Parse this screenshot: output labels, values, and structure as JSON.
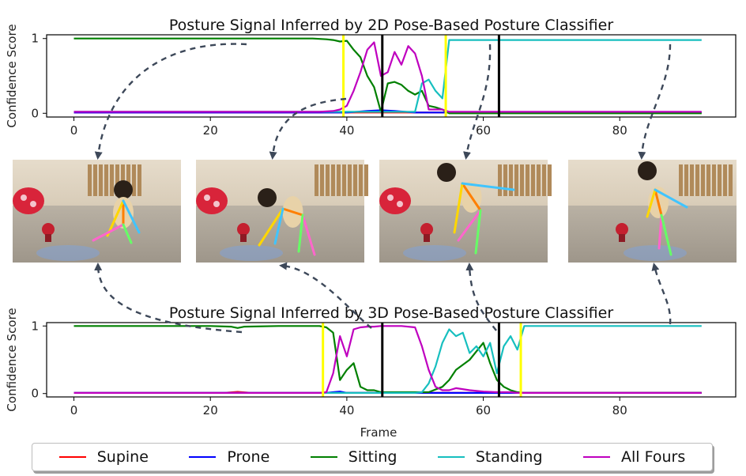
{
  "colors": {
    "Supine": "#ff0000",
    "Prone": "#0000ff",
    "Sitting": "#008000",
    "Standing": "#17bfbf",
    "All Fours": "#bf00bf",
    "boundary_yellow": "#ffff00",
    "boundary_black": "#000000",
    "arrow": "#3d4859"
  },
  "legend": [
    "Supine",
    "Prone",
    "Sitting",
    "Standing",
    "All Fours"
  ],
  "frames": [
    {
      "name": "frame-1",
      "description_icon": "child-sitting-photo"
    },
    {
      "name": "frame-2",
      "description_icon": "child-crawling-photo"
    },
    {
      "name": "frame-3",
      "description_icon": "child-rising-photo"
    },
    {
      "name": "frame-4",
      "description_icon": "child-standing-photo"
    }
  ],
  "chart_data": [
    {
      "type": "line",
      "title": "Posture Signal Inferred by 2D Pose-Based Posture Classifier",
      "xlabel": "",
      "ylabel": "Confidence Score",
      "xlim": [
        -4,
        97
      ],
      "ylim": [
        -0.05,
        1.05
      ],
      "xticks": [
        0,
        20,
        40,
        60,
        80
      ],
      "yticks": [
        0,
        1
      ],
      "vlines": [
        {
          "x": 39.5,
          "color": "yellow"
        },
        {
          "x": 45.2,
          "color": "black"
        },
        {
          "x": 54.5,
          "color": "yellow"
        },
        {
          "x": 62.3,
          "color": "black"
        }
      ],
      "series": [
        {
          "name": "Sitting",
          "x": [
            0,
            10,
            20,
            30,
            35,
            37,
            38,
            39,
            40,
            41,
            42,
            43,
            44,
            45,
            46,
            47,
            48,
            49,
            50,
            51,
            52,
            53,
            54,
            55,
            60,
            70,
            80,
            92
          ],
          "y": [
            1,
            1,
            1,
            1,
            1,
            0.99,
            0.98,
            0.96,
            0.97,
            0.85,
            0.75,
            0.5,
            0.35,
            0.02,
            0.4,
            0.42,
            0.38,
            0.3,
            0.25,
            0.3,
            0.1,
            0.08,
            0.05,
            0,
            0,
            0,
            0,
            0
          ]
        },
        {
          "name": "All Fours",
          "x": [
            0,
            20,
            36,
            38,
            39,
            40,
            41,
            42,
            43,
            44,
            45,
            46,
            47,
            48,
            49,
            50,
            51,
            52,
            53,
            54,
            55,
            60,
            92
          ],
          "y": [
            0.02,
            0.02,
            0.02,
            0.03,
            0.05,
            0.1,
            0.3,
            0.55,
            0.85,
            0.95,
            0.5,
            0.55,
            0.82,
            0.65,
            0.9,
            0.8,
            0.5,
            0.05,
            0.05,
            0.05,
            0.02,
            0.02,
            0.02
          ]
        },
        {
          "name": "Standing",
          "x": [
            0,
            40,
            45,
            50,
            51,
            52,
            53,
            54,
            55,
            56,
            60,
            70,
            80,
            92
          ],
          "y": [
            0.02,
            0.02,
            0.02,
            0.02,
            0.4,
            0.45,
            0.3,
            0.2,
            0.98,
            0.98,
            0.98,
            0.98,
            0.98,
            0.98
          ]
        },
        {
          "name": "Prone",
          "x": [
            0,
            40,
            43,
            45,
            47,
            50,
            92
          ],
          "y": [
            0.01,
            0.01,
            0.03,
            0.04,
            0.03,
            0.01,
            0.01
          ]
        },
        {
          "name": "Supine",
          "x": [
            0,
            92
          ],
          "y": [
            0.01,
            0.01
          ]
        }
      ]
    },
    {
      "type": "line",
      "title": "Posture Signal Inferred by 3D Pose-Based Posture Classifier",
      "xlabel": "Frame",
      "ylabel": "Confidence Score",
      "xlim": [
        -4,
        97
      ],
      "ylim": [
        -0.05,
        1.05
      ],
      "xticks": [
        0,
        20,
        40,
        60,
        80
      ],
      "yticks": [
        0,
        1
      ],
      "vlines": [
        {
          "x": 36.5,
          "color": "yellow"
        },
        {
          "x": 45.2,
          "color": "black"
        },
        {
          "x": 62.3,
          "color": "black"
        },
        {
          "x": 65.5,
          "color": "yellow"
        }
      ],
      "series": [
        {
          "name": "Sitting",
          "x": [
            0,
            10,
            20,
            23,
            24,
            25,
            30,
            35,
            36,
            37,
            38,
            39,
            40,
            41,
            42,
            43,
            44,
            45,
            50,
            52,
            54,
            55,
            56,
            58,
            60,
            61,
            62,
            63,
            64,
            65,
            66,
            70,
            92
          ],
          "y": [
            1,
            1,
            1,
            0.99,
            0.97,
            0.99,
            1,
            1,
            1,
            0.98,
            0.9,
            0.2,
            0.35,
            0.45,
            0.1,
            0.05,
            0.05,
            0.02,
            0.02,
            0.02,
            0.1,
            0.2,
            0.35,
            0.5,
            0.75,
            0.45,
            0.2,
            0.1,
            0.05,
            0.02,
            0.01,
            0.01,
            0.01
          ]
        },
        {
          "name": "All Fours",
          "x": [
            0,
            20,
            36,
            37,
            38,
            39,
            40,
            41,
            42,
            43,
            44,
            45,
            48,
            50,
            51,
            52,
            53,
            54,
            55,
            56,
            58,
            60,
            62,
            64,
            65,
            92
          ],
          "y": [
            0.01,
            0.01,
            0.01,
            0.02,
            0.3,
            0.85,
            0.55,
            0.95,
            0.98,
            0.99,
            0.99,
            1,
            1,
            0.98,
            0.7,
            0.35,
            0.1,
            0.05,
            0.05,
            0.08,
            0.05,
            0.03,
            0.02,
            0.02,
            0.01,
            0.01
          ]
        },
        {
          "name": "Standing",
          "x": [
            0,
            50,
            51,
            52,
            53,
            54,
            55,
            56,
            57,
            58,
            59,
            60,
            61,
            62,
            63,
            64,
            65,
            66,
            70,
            80,
            92
          ],
          "y": [
            0.01,
            0.01,
            0.02,
            0.15,
            0.4,
            0.75,
            0.95,
            0.85,
            0.9,
            0.6,
            0.7,
            0.55,
            0.75,
            0.3,
            0.7,
            0.85,
            0.65,
            1,
            1,
            1,
            1
          ]
        },
        {
          "name": "Prone",
          "x": [
            0,
            37,
            38,
            39,
            40,
            92
          ],
          "y": [
            0.01,
            0.01,
            0.02,
            0.03,
            0.01,
            0.01
          ]
        },
        {
          "name": "Supine",
          "x": [
            0,
            22,
            24,
            26,
            30,
            60,
            62,
            63,
            92
          ],
          "y": [
            0.01,
            0.01,
            0.025,
            0.01,
            0.01,
            0.01,
            0.02,
            0.01,
            0.01
          ]
        }
      ]
    }
  ]
}
